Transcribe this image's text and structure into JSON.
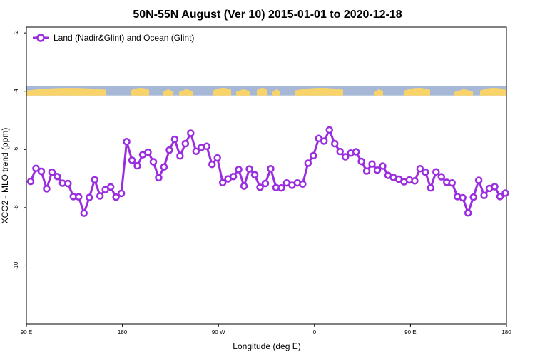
{
  "chart_data": {
    "type": "line",
    "title": "50N-55N August (Ver 10)   2015-01-01 to 2020-12-18",
    "xlabel": "Longitude (deg E)",
    "ylabel": "XCO2 - MLO trend (ppm)",
    "xlim": [
      90,
      540
    ],
    "ylim": [
      -12,
      -1.8
    ],
    "y_inverted": true,
    "xticks": [
      {
        "value": 90,
        "label": "90 E"
      },
      {
        "value": 180,
        "label": "180"
      },
      {
        "value": 270,
        "label": "90 W"
      },
      {
        "value": 360,
        "label": "0"
      },
      {
        "value": 450,
        "label": "90 E"
      },
      {
        "value": 540,
        "label": "180"
      }
    ],
    "yticks": [
      {
        "value": -2,
        "label": "-2"
      },
      {
        "value": -4,
        "label": "-4"
      },
      {
        "value": -6,
        "label": "-6"
      },
      {
        "value": -8,
        "label": "-8"
      },
      {
        "value": -10,
        "label": "-10"
      }
    ],
    "legend_position": "top-left",
    "series": [
      {
        "name": "Land (Nadir&Glint) and Ocean (Glint)",
        "color": "#9b2de0",
        "x": [
          94,
          99,
          104,
          109,
          114,
          119,
          124,
          129,
          134,
          139,
          144,
          149,
          154,
          159,
          164,
          169,
          174,
          179,
          184,
          189,
          194,
          199,
          204,
          209,
          214,
          219,
          224,
          229,
          234,
          239,
          244,
          249,
          254,
          259,
          264,
          269,
          274,
          279,
          284,
          289,
          294,
          299,
          304,
          309,
          314,
          319,
          324,
          329,
          334,
          339,
          344,
          349,
          354,
          359,
          364,
          369,
          374,
          379,
          384,
          389,
          394,
          399,
          404,
          409,
          414,
          419,
          424,
          429,
          434,
          439,
          444,
          449,
          454,
          459,
          464,
          469,
          474,
          479,
          484,
          489,
          494,
          499,
          504,
          509,
          514,
          519,
          524,
          529,
          534,
          539
        ],
        "y": [
          -7.1,
          -6.65,
          -6.75,
          -7.35,
          -6.78,
          -6.93,
          -7.16,
          -7.17,
          -7.62,
          -7.63,
          -8.19,
          -7.65,
          -7.04,
          -7.6,
          -7.38,
          -7.29,
          -7.64,
          -7.51,
          -5.73,
          -6.37,
          -6.56,
          -6.18,
          -6.09,
          -6.42,
          -6.97,
          -6.6,
          -6.02,
          -5.65,
          -6.22,
          -5.8,
          -5.44,
          -6.06,
          -5.93,
          -5.89,
          -6.51,
          -6.29,
          -7.14,
          -7.01,
          -6.93,
          -6.69,
          -7.26,
          -6.67,
          -6.87,
          -7.3,
          -7.17,
          -6.66,
          -7.31,
          -7.32,
          -7.15,
          -7.23,
          -7.15,
          -7.19,
          -6.47,
          -6.21,
          -5.62,
          -5.71,
          -5.33,
          -5.8,
          -6.07,
          -6.25,
          -6.12,
          -6.08,
          -6.41,
          -6.74,
          -6.5,
          -6.71,
          -6.57,
          -6.89,
          -6.96,
          -7.02,
          -7.11,
          -7.05,
          -7.08,
          -6.66,
          -6.78,
          -7.32,
          -6.77,
          -6.94,
          -7.13,
          -7.15,
          -7.62,
          -7.66,
          -8.18,
          -7.64,
          -7.06,
          -7.58,
          -7.34,
          -7.28,
          -7.62,
          -7.5
        ]
      }
    ],
    "surface_band": {
      "y": -4,
      "land_color": "#f7d36a",
      "ocean_color": "#a7b8d6"
    }
  }
}
